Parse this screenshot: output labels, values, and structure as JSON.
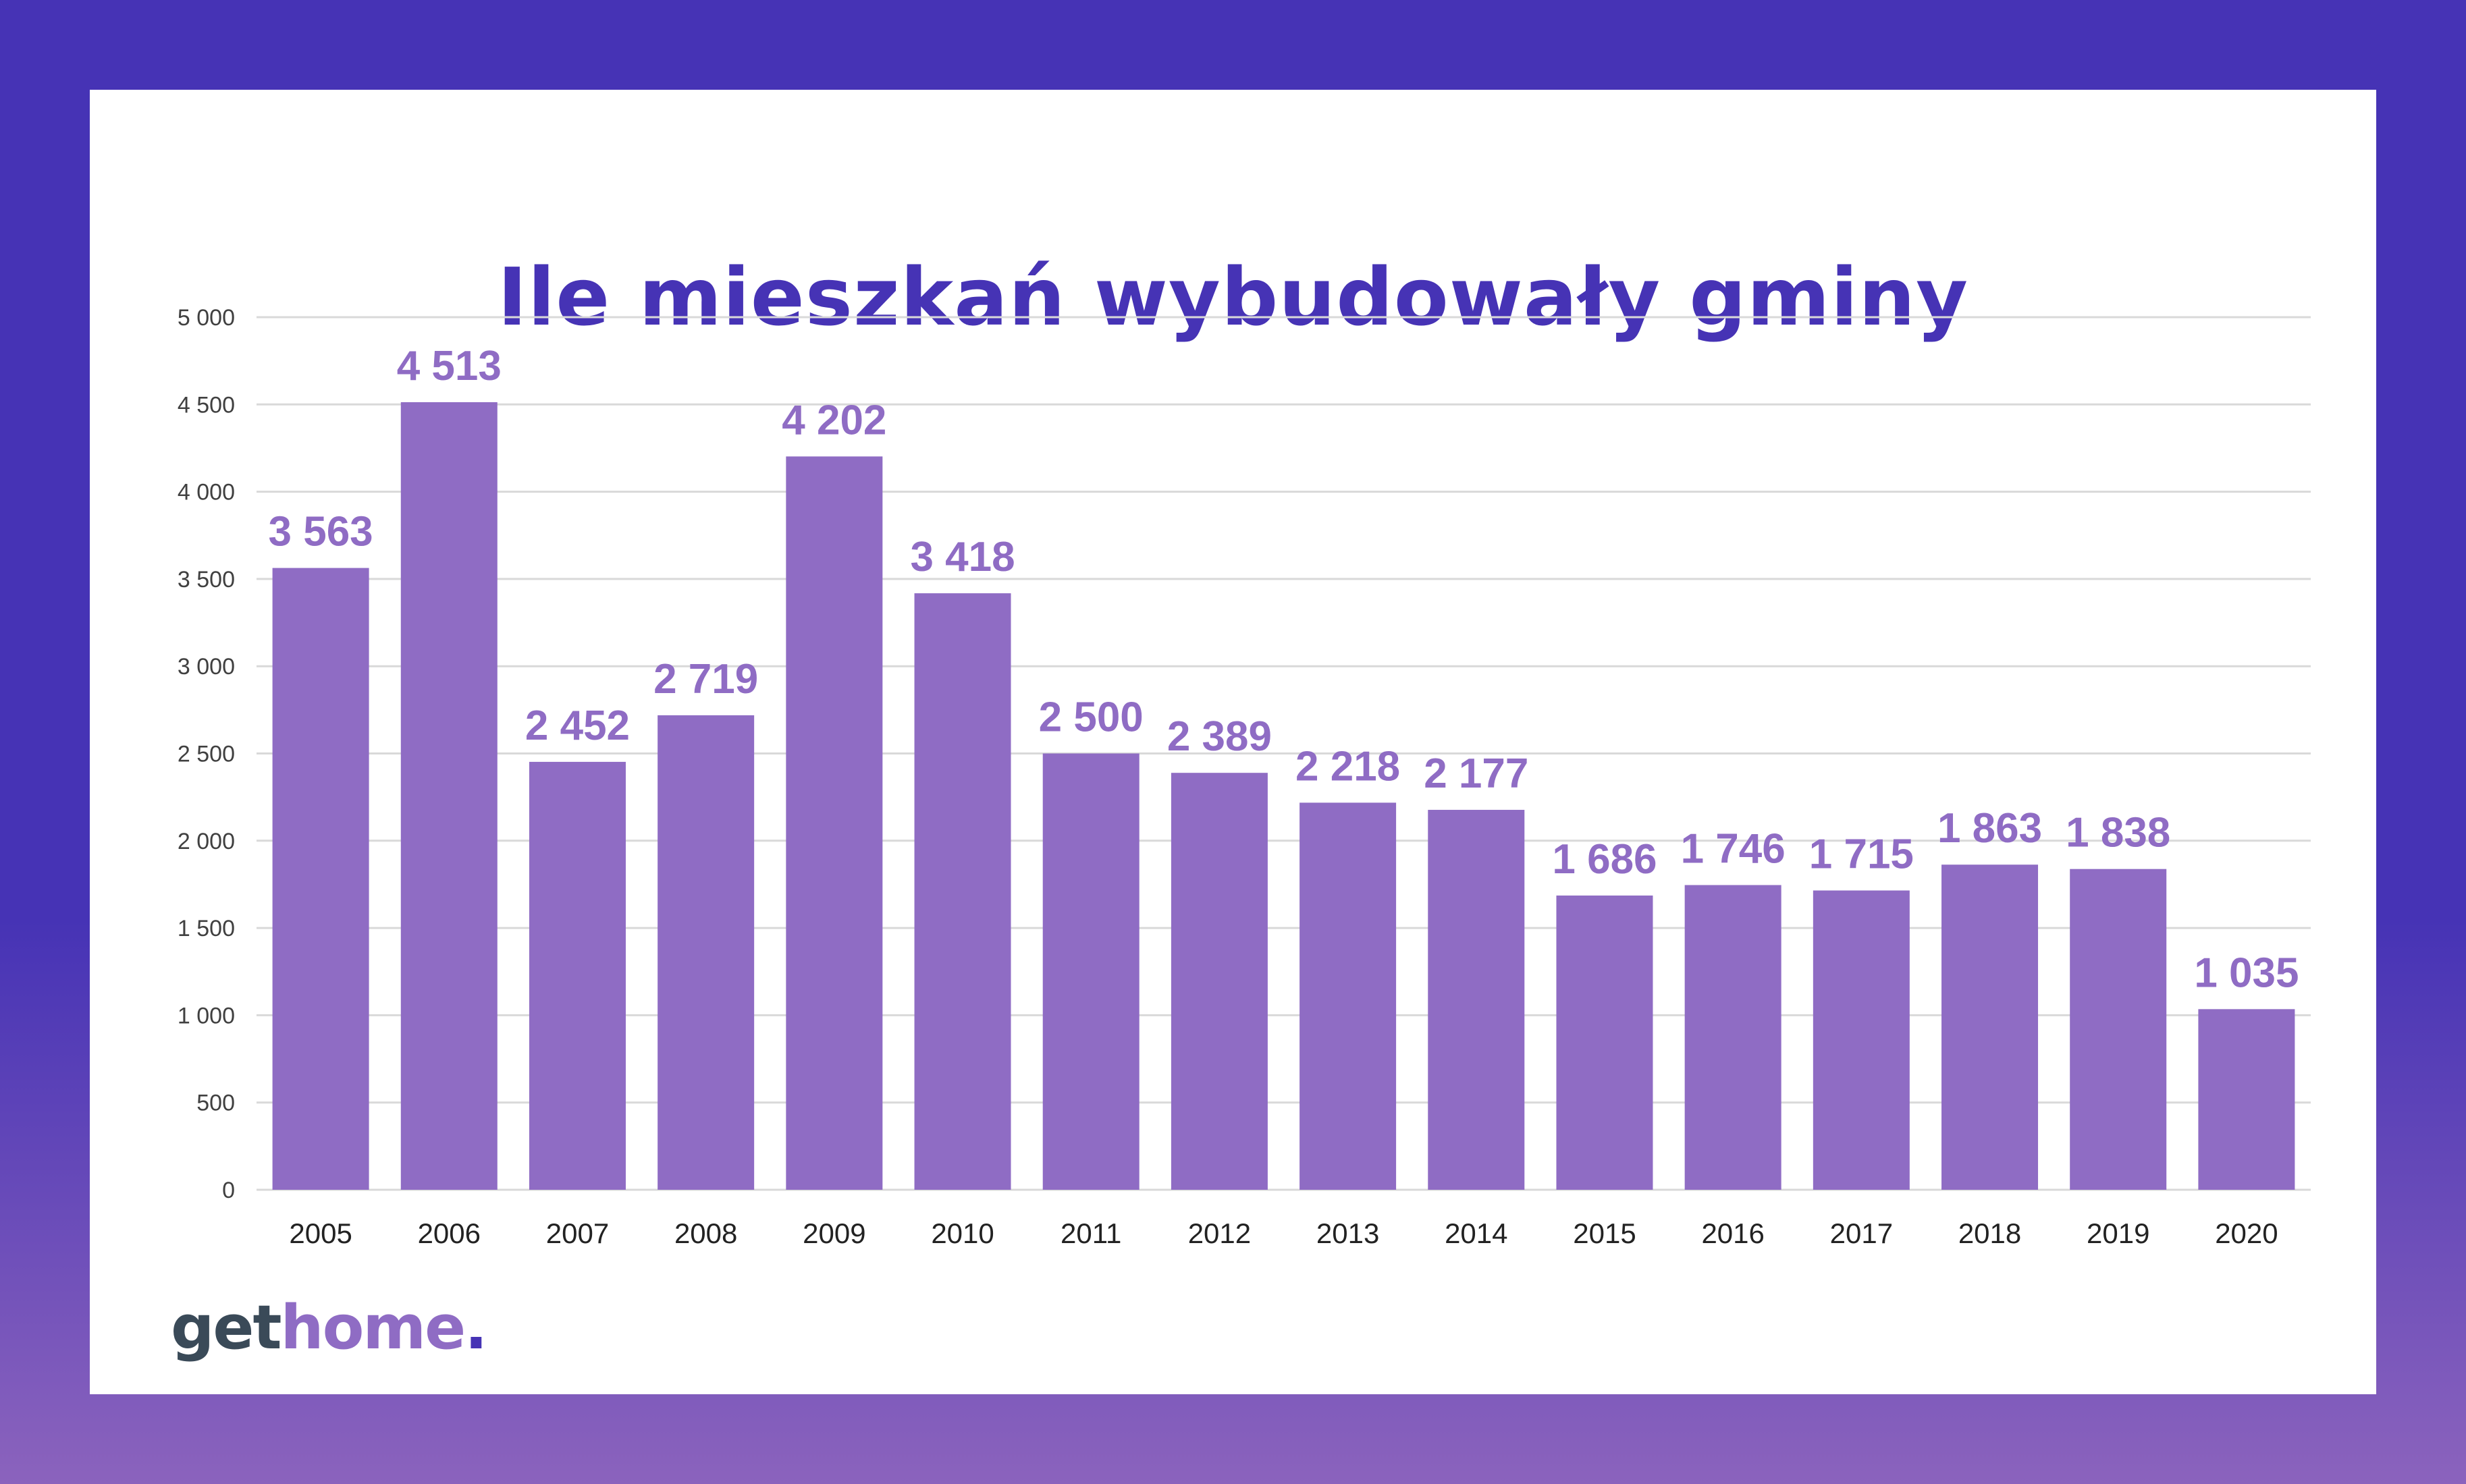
{
  "brand": {
    "part1": "get",
    "part2": "home",
    "part3": "."
  },
  "colors": {
    "frame": "#4633b5",
    "bar": "#8f6cc4",
    "label": "#8f6cc4",
    "title": "#4633b5",
    "grid": "#d9d9d9",
    "axis_text": "#404040"
  },
  "chart_data": {
    "type": "bar",
    "title": "Ile mieszkań wybudowały gminy",
    "xlabel": "",
    "ylabel": "",
    "categories": [
      "2005",
      "2006",
      "2007",
      "2008",
      "2009",
      "2010",
      "2011",
      "2012",
      "2013",
      "2014",
      "2015",
      "2016",
      "2017",
      "2018",
      "2019",
      "2020"
    ],
    "values": [
      3563,
      4513,
      2452,
      2719,
      4202,
      3418,
      2500,
      2389,
      2218,
      2177,
      1686,
      1746,
      1715,
      1863,
      1838,
      1035
    ],
    "value_labels": [
      "3 563",
      "4 513",
      "2 452",
      "2 719",
      "4 202",
      "3 418",
      "2 500",
      "2 389",
      "2 218",
      "2 177",
      "1 686",
      "1 746",
      "1 715",
      "1 863",
      "1 838",
      "1 035"
    ],
    "ylim": [
      0,
      5000
    ],
    "yticks": [
      0,
      500,
      1000,
      1500,
      2000,
      2500,
      3000,
      3500,
      4000,
      4500,
      5000
    ],
    "ytick_labels": [
      "0",
      "500",
      "1 000",
      "1 500",
      "2 000",
      "2 500",
      "3 000",
      "3 500",
      "4 000",
      "4 500",
      "5 000"
    ],
    "grid": true,
    "legend": "none"
  }
}
